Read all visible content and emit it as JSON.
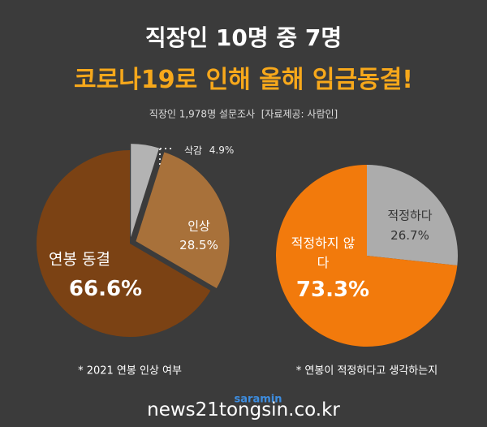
{
  "header": {
    "title": "직장인 10명 중 7명",
    "headline": "코로나19로 인해 올해 임금동결!",
    "subtitle": "직장인 1,978명 설문조사  [자료제공: 사람인]"
  },
  "chart_data": [
    {
      "type": "pie",
      "caption": "* 2021 연봉 인상 여부",
      "categories": [
        "연봉 동결",
        "인상",
        "삭감"
      ],
      "values": [
        66.6,
        28.5,
        4.9
      ],
      "value_labels": [
        "66.6%",
        "28.5%",
        "4.9%"
      ],
      "colors": [
        "#7b4214",
        "#a8713a",
        "#b3b3b3"
      ]
    },
    {
      "type": "pie",
      "caption": "* 연봉이 적정하다고 생각하는지",
      "categories": [
        "적정하지 않다",
        "적정하다"
      ],
      "values": [
        73.3,
        26.7
      ],
      "value_labels": [
        "73.3%",
        "26.7%"
      ],
      "colors": [
        "#f27a0c",
        "#acacac"
      ]
    }
  ],
  "footer": {
    "site": "news21tongsin.co.kr",
    "brand": "saramin"
  }
}
